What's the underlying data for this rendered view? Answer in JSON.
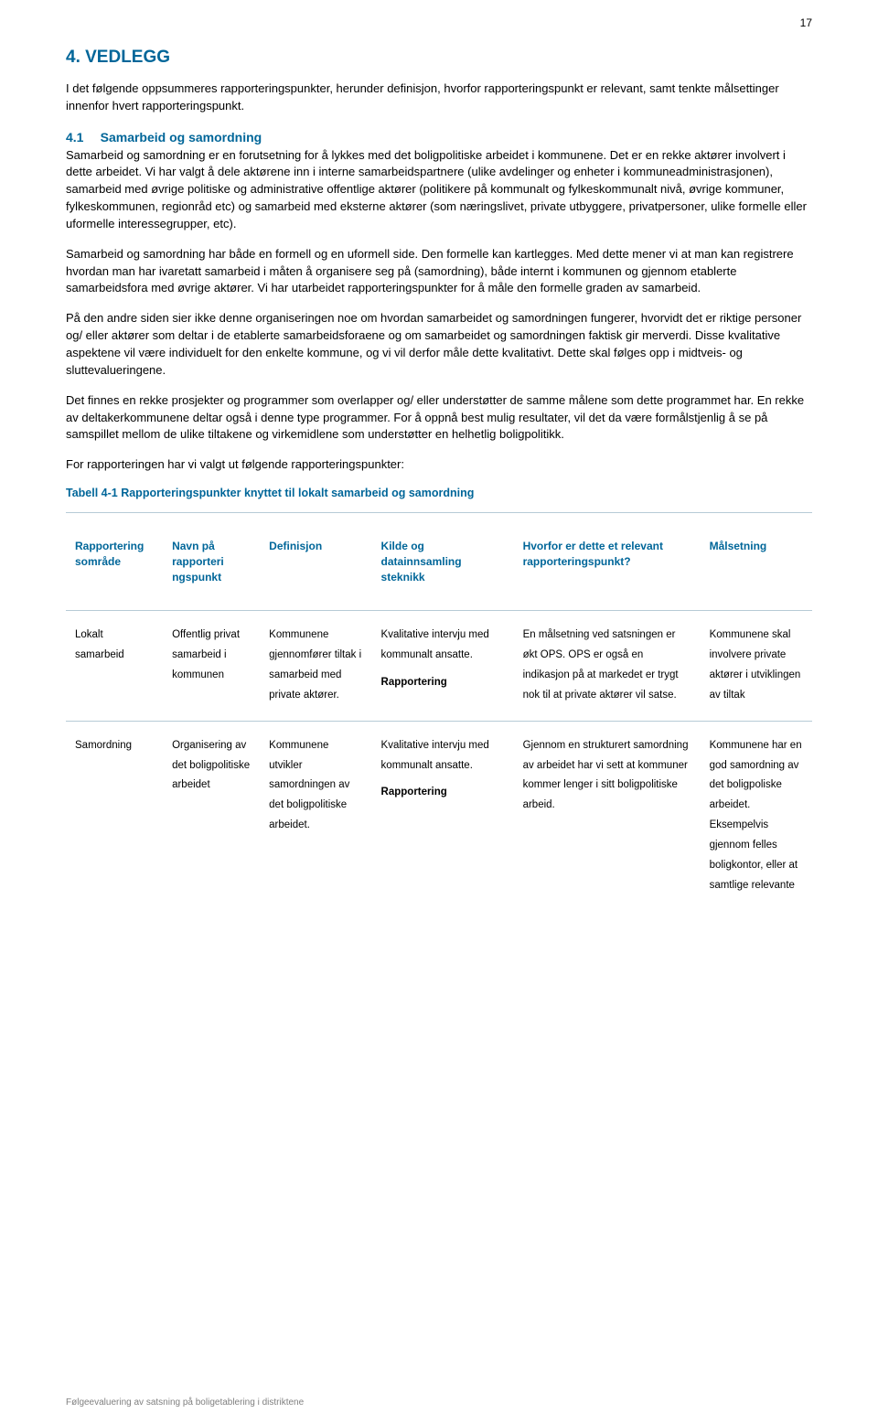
{
  "page_number": "17",
  "heading": "4.  VEDLEGG",
  "intro": "I det følgende oppsummeres rapporteringspunkter, herunder definisjon, hvorfor rapporteringspunkt er relevant, samt tenkte målsettinger innenfor hvert rapporteringspunkt.",
  "sub_number": "4.1",
  "sub_title": "Samarbeid og samordning",
  "para1": "Samarbeid og samordning er en forutsetning for å lykkes med det boligpolitiske arbeidet i kommunene. Det er en rekke aktører involvert i dette arbeidet. Vi har valgt å dele aktørene inn i interne samarbeidspartnere (ulike avdelinger og enheter i kommuneadministrasjonen), samarbeid med øvrige politiske og administrative offentlige aktører (politikere på kommunalt og fylkeskommunalt nivå, øvrige kommuner, fylkeskommunen, regionråd etc) og samarbeid med eksterne aktører (som næringslivet, private utbyggere, privatpersoner, ulike formelle eller uformelle interessegrupper, etc).",
  "para2": "Samarbeid og samordning har både en formell og en uformell side. Den formelle kan kartlegges. Med dette mener vi at man kan registrere hvordan man har ivaretatt samarbeid i måten å organisere seg på (samordning), både internt i kommunen og gjennom etablerte samarbeidsfora med øvrige aktører. Vi har utarbeidet rapporteringspunkter for å måle den formelle graden av samarbeid.",
  "para3": "På den andre siden sier ikke denne organiseringen noe om hvordan samarbeidet og samordningen fungerer, hvorvidt det er riktige personer og/ eller aktører som deltar i de etablerte samarbeidsforaene og om samarbeidet og samordningen faktisk gir merverdi. Disse kvalitative aspektene vil være individuelt for den enkelte kommune, og vi vil derfor måle dette kvalitativt. Dette skal følges opp i midtveis- og sluttevalueringene.",
  "para4": "Det finnes en rekke prosjekter og programmer som overlapper og/ eller understøtter de samme målene som dette programmet har. En rekke av deltakerkommunene deltar også i denne type programmer. For å oppnå best mulig resultater, vil det da være formålstjenlig å se på samspillet mellom de ulike tiltakene og virkemidlene som understøtter en helhetlig boligpolitikk.",
  "para5": "For rapporteringen har vi valgt ut følgende rapporteringspunkter:",
  "table_caption": "Tabell 4-1 Rapporteringspunkter knyttet til lokalt samarbeid og samordning",
  "table": {
    "headers": [
      "Rapportering sområde",
      "Navn på rapporteri ngspunkt",
      "Definisjon",
      "Kilde og datainnsamling steknikk",
      "Hvorfor er dette et relevant rapporteringspunkt?",
      "Målsetning"
    ],
    "rows": [
      {
        "c0": "Lokalt samarbeid",
        "c1": "Offentlig privat samarbeid i kommunen",
        "c2": "Kommunene gjennomfører tiltak i samarbeid med private aktører.",
        "c3a": "Kvalitative intervju med kommunalt ansatte.",
        "c3b": "Rapportering",
        "c4": "En målsetning ved satsningen er økt OPS. OPS er også en indikasjon på at markedet er trygt nok til at private aktører vil satse.",
        "c5": "Kommunene skal involvere private aktører i utviklingen av tiltak"
      },
      {
        "c0": "Samordning",
        "c1": "Organisering av det boligpolitiske arbeidet",
        "c2": "Kommunene utvikler samordningen av det boligpolitiske arbeidet.",
        "c3a": "Kvalitative intervju med kommunalt ansatte.",
        "c3b": "Rapportering",
        "c4": "Gjennom en strukturert samordning av arbeidet har vi sett at kommuner kommer lenger i sitt boligpolitiske arbeid.",
        "c5": "Kommunene har en god samordning av det boligpoliske arbeidet. Eksempelvis gjennom felles boligkontor, eller at samtlige relevante"
      }
    ]
  },
  "footer": "Følgeevaluering av satsning på boligetablering i distriktene"
}
